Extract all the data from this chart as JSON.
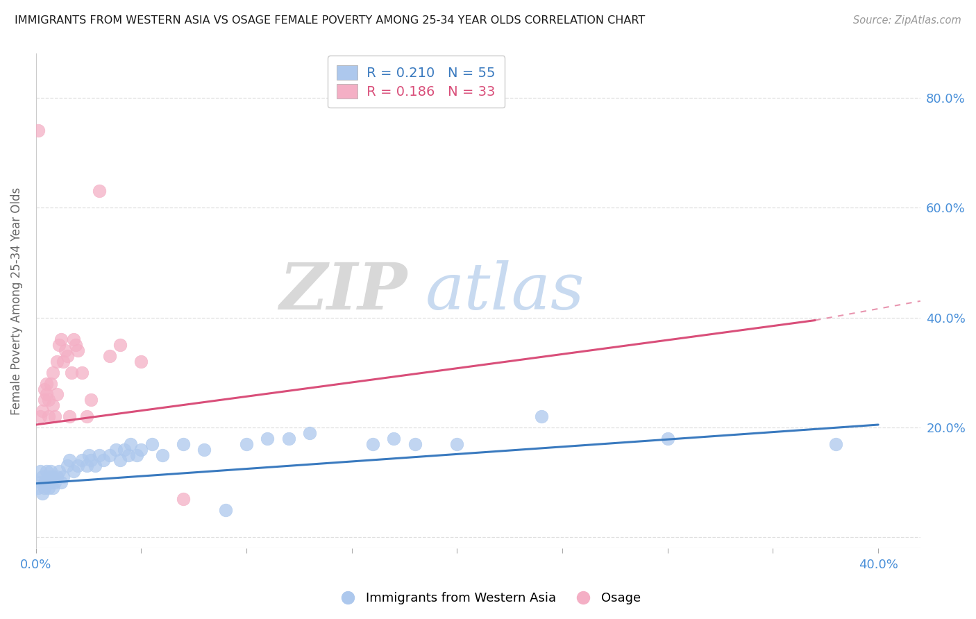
{
  "title": "IMMIGRANTS FROM WESTERN ASIA VS OSAGE FEMALE POVERTY AMONG 25-34 YEAR OLDS CORRELATION CHART",
  "source": "Source: ZipAtlas.com",
  "ylabel": "Female Poverty Among 25-34 Year Olds",
  "xlim": [
    0.0,
    0.42
  ],
  "ylim": [
    -0.02,
    0.88
  ],
  "xticks": [
    0.0,
    0.05,
    0.1,
    0.15,
    0.2,
    0.25,
    0.3,
    0.35,
    0.4
  ],
  "xticklabels": [
    "0.0%",
    "",
    "",
    "",
    "",
    "",
    "",
    "",
    "40.0%"
  ],
  "ytick_positions": [
    0.0,
    0.2,
    0.4,
    0.6,
    0.8
  ],
  "yticklabels": [
    "",
    "20.0%",
    "40.0%",
    "60.0%",
    "80.0%"
  ],
  "legend_blue_r": "R = 0.210",
  "legend_blue_n": "N = 55",
  "legend_pink_r": "R = 0.186",
  "legend_pink_n": "N = 33",
  "blue_color": "#adc8ed",
  "pink_color": "#f4afc5",
  "blue_line_color": "#3a7abf",
  "pink_line_color": "#d94f7a",
  "pink_line_dashed_color": "#d94f7a",
  "blue_scatter": [
    [
      0.001,
      0.09
    ],
    [
      0.002,
      0.1
    ],
    [
      0.002,
      0.12
    ],
    [
      0.003,
      0.08
    ],
    [
      0.003,
      0.11
    ],
    [
      0.004,
      0.1
    ],
    [
      0.004,
      0.09
    ],
    [
      0.005,
      0.12
    ],
    [
      0.005,
      0.1
    ],
    [
      0.006,
      0.11
    ],
    [
      0.006,
      0.09
    ],
    [
      0.007,
      0.1
    ],
    [
      0.007,
      0.12
    ],
    [
      0.008,
      0.09
    ],
    [
      0.008,
      0.11
    ],
    [
      0.009,
      0.1
    ],
    [
      0.01,
      0.11
    ],
    [
      0.011,
      0.12
    ],
    [
      0.012,
      0.1
    ],
    [
      0.013,
      0.11
    ],
    [
      0.015,
      0.13
    ],
    [
      0.016,
      0.14
    ],
    [
      0.018,
      0.12
    ],
    [
      0.02,
      0.13
    ],
    [
      0.022,
      0.14
    ],
    [
      0.024,
      0.13
    ],
    [
      0.025,
      0.15
    ],
    [
      0.026,
      0.14
    ],
    [
      0.028,
      0.13
    ],
    [
      0.03,
      0.15
    ],
    [
      0.032,
      0.14
    ],
    [
      0.035,
      0.15
    ],
    [
      0.038,
      0.16
    ],
    [
      0.04,
      0.14
    ],
    [
      0.042,
      0.16
    ],
    [
      0.044,
      0.15
    ],
    [
      0.045,
      0.17
    ],
    [
      0.048,
      0.15
    ],
    [
      0.05,
      0.16
    ],
    [
      0.055,
      0.17
    ],
    [
      0.06,
      0.15
    ],
    [
      0.07,
      0.17
    ],
    [
      0.08,
      0.16
    ],
    [
      0.09,
      0.05
    ],
    [
      0.1,
      0.17
    ],
    [
      0.11,
      0.18
    ],
    [
      0.12,
      0.18
    ],
    [
      0.13,
      0.19
    ],
    [
      0.16,
      0.17
    ],
    [
      0.17,
      0.18
    ],
    [
      0.18,
      0.17
    ],
    [
      0.2,
      0.17
    ],
    [
      0.24,
      0.22
    ],
    [
      0.3,
      0.18
    ],
    [
      0.38,
      0.17
    ]
  ],
  "pink_scatter": [
    [
      0.001,
      0.74
    ],
    [
      0.002,
      0.22
    ],
    [
      0.003,
      0.23
    ],
    [
      0.004,
      0.25
    ],
    [
      0.004,
      0.27
    ],
    [
      0.005,
      0.26
    ],
    [
      0.005,
      0.28
    ],
    [
      0.006,
      0.22
    ],
    [
      0.006,
      0.25
    ],
    [
      0.007,
      0.28
    ],
    [
      0.008,
      0.24
    ],
    [
      0.008,
      0.3
    ],
    [
      0.009,
      0.22
    ],
    [
      0.01,
      0.26
    ],
    [
      0.01,
      0.32
    ],
    [
      0.011,
      0.35
    ],
    [
      0.012,
      0.36
    ],
    [
      0.013,
      0.32
    ],
    [
      0.014,
      0.34
    ],
    [
      0.015,
      0.33
    ],
    [
      0.016,
      0.22
    ],
    [
      0.017,
      0.3
    ],
    [
      0.018,
      0.36
    ],
    [
      0.019,
      0.35
    ],
    [
      0.02,
      0.34
    ],
    [
      0.022,
      0.3
    ],
    [
      0.024,
      0.22
    ],
    [
      0.026,
      0.25
    ],
    [
      0.03,
      0.63
    ],
    [
      0.035,
      0.33
    ],
    [
      0.04,
      0.35
    ],
    [
      0.05,
      0.32
    ],
    [
      0.07,
      0.07
    ]
  ],
  "watermark_zip": "ZIP",
  "watermark_atlas": "atlas",
  "background_color": "#ffffff",
  "grid_color": "#e0e0e0"
}
